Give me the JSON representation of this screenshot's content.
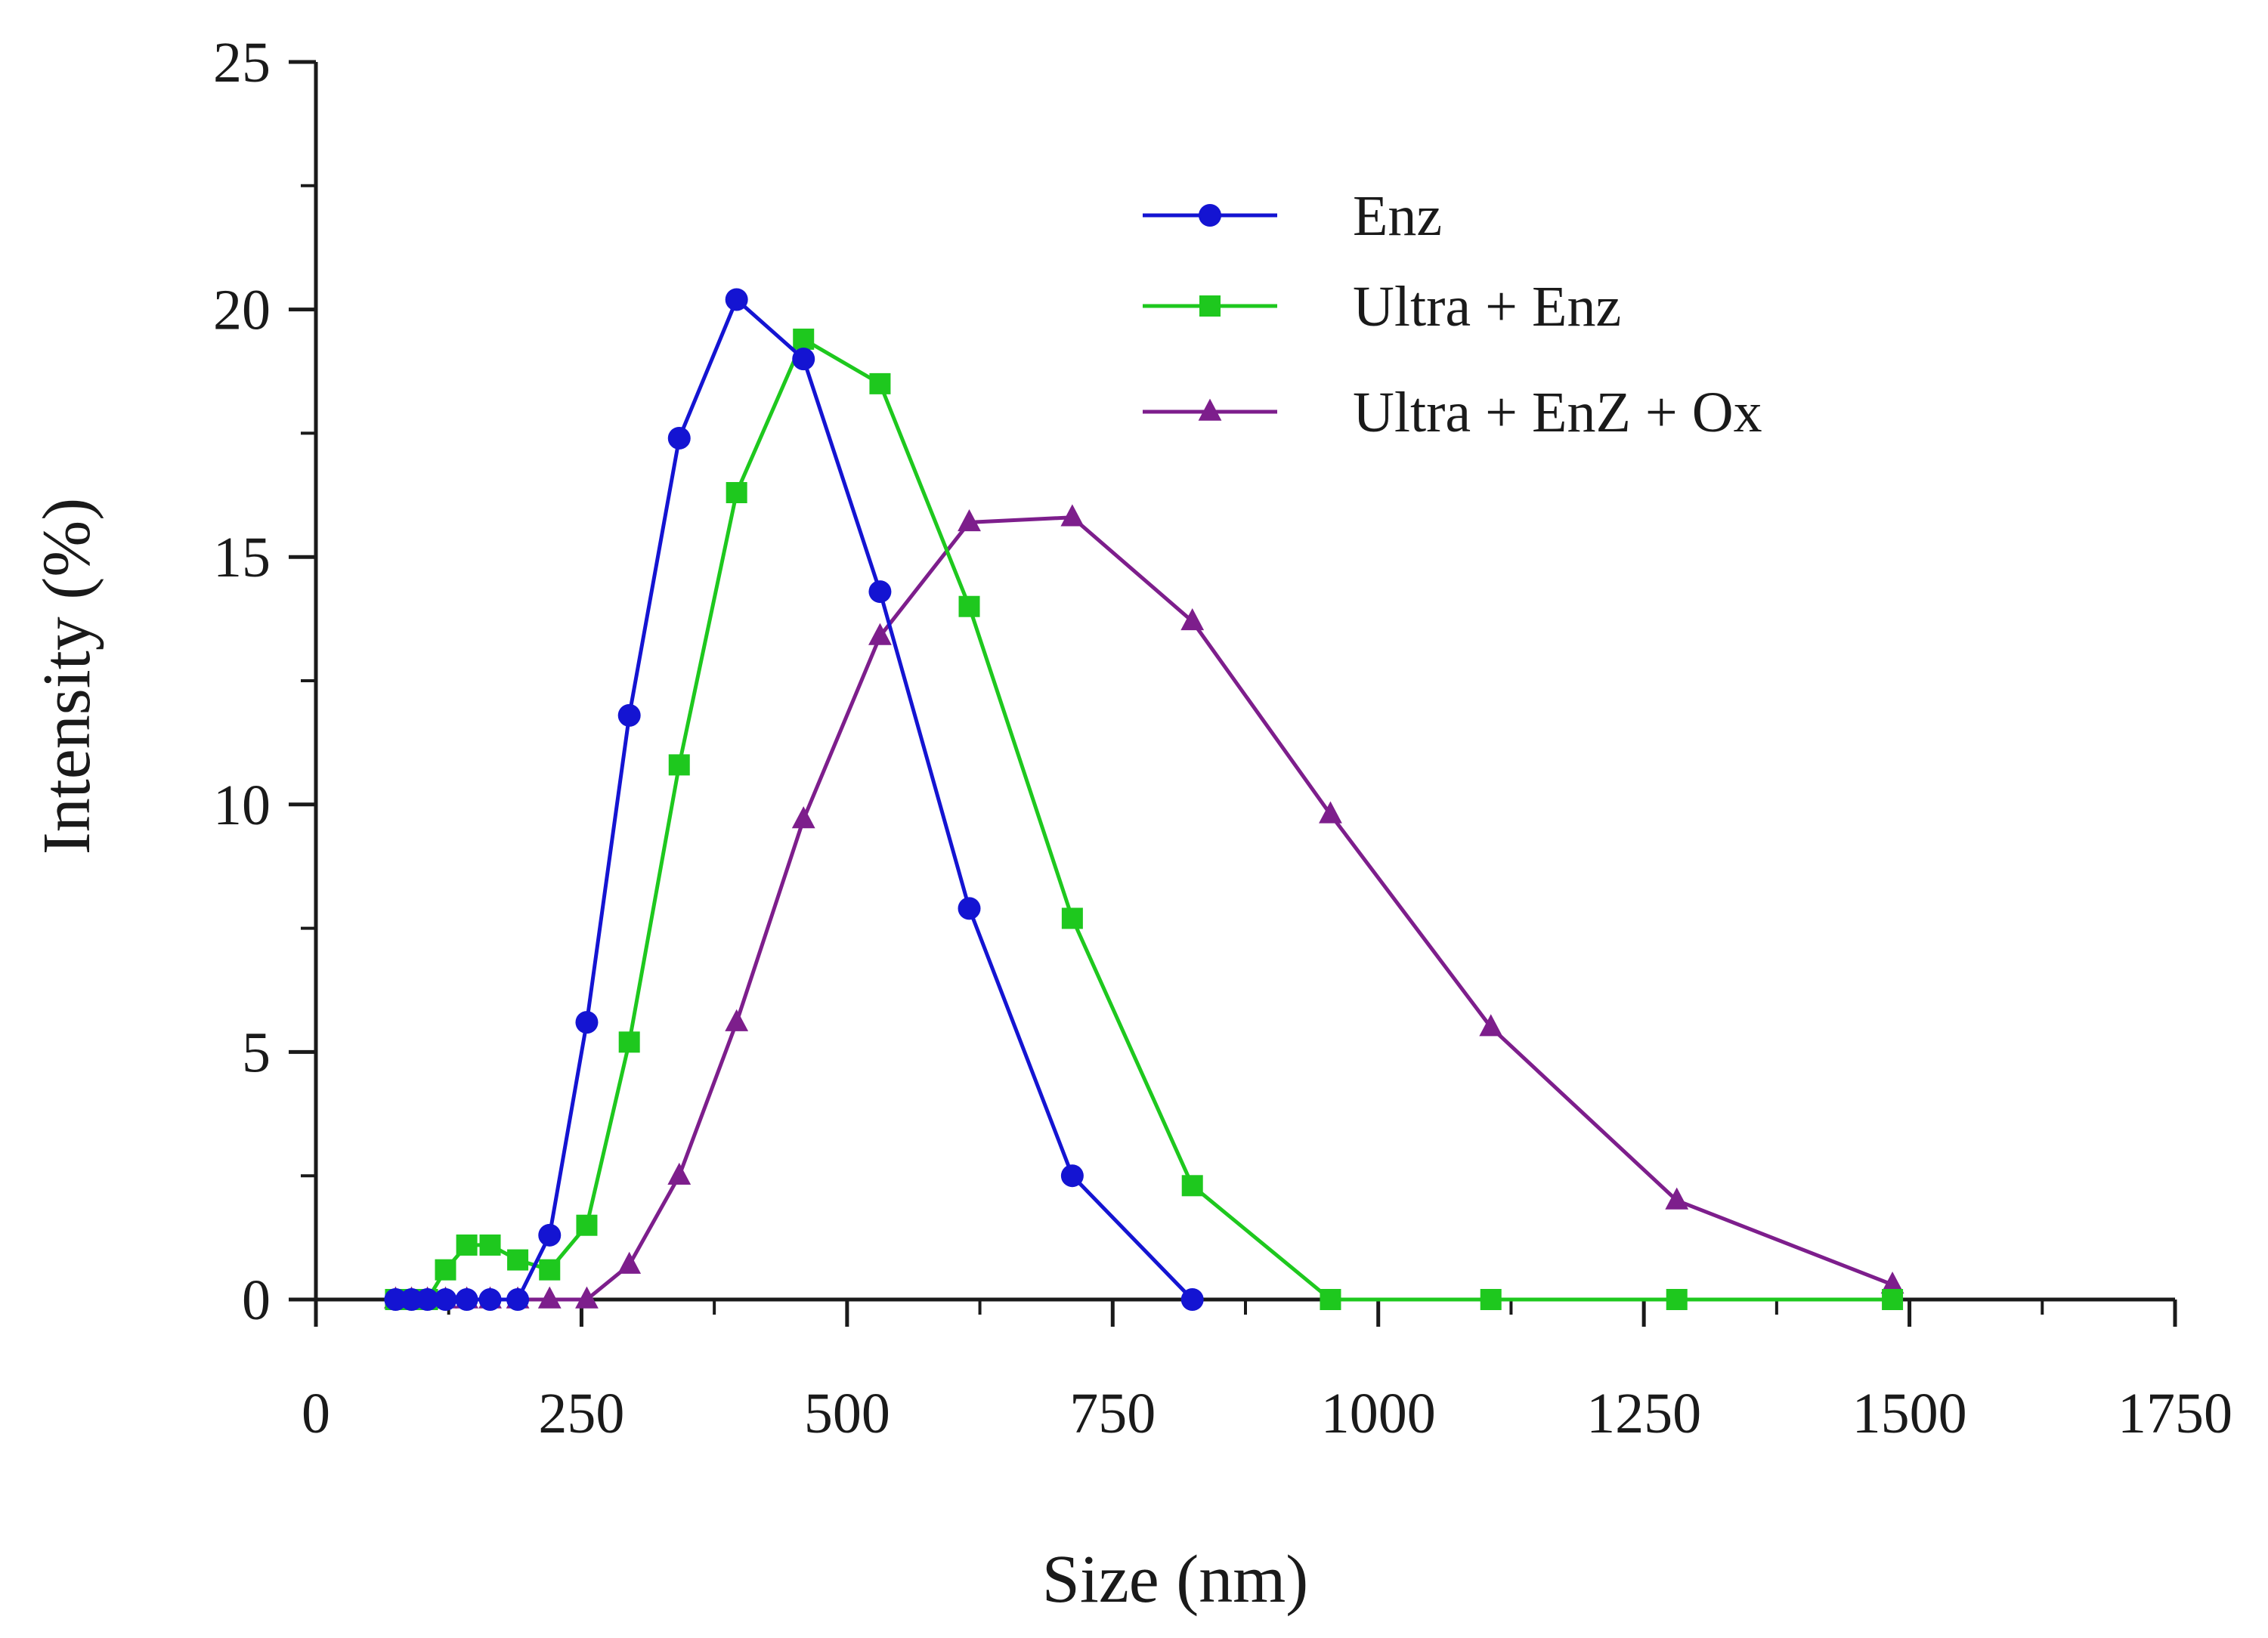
{
  "chart_data": {
    "type": "line",
    "title": "",
    "xlabel": "Size (nm)",
    "ylabel": "Intensity (%)",
    "xlim": [
      0,
      1750
    ],
    "ylim": [
      0,
      25
    ],
    "xticks": [
      0,
      250,
      500,
      750,
      1000,
      1250,
      1500,
      1750
    ],
    "yticks": [
      0,
      5,
      10,
      15,
      20,
      25
    ],
    "xtick_labels": [
      "0",
      "250",
      "500",
      "750",
      "1000",
      "1250",
      "1500",
      "1750"
    ],
    "ytick_labels": [
      "0",
      "5",
      "10",
      "15",
      "20",
      "25"
    ],
    "grid": false,
    "legend_position": "top-right",
    "series": [
      {
        "name": "Enz",
        "color": "#1414d2",
        "marker": "circle",
        "x": [
          75,
          90,
          105,
          122,
          142,
          164,
          190,
          220,
          255,
          295,
          342,
          396,
          459,
          531,
          615,
          712,
          825
        ],
        "y": [
          0,
          0,
          0,
          0,
          0,
          0,
          0,
          1.3,
          5.6,
          11.8,
          17.4,
          20.2,
          19.0,
          14.3,
          7.9,
          2.5,
          0
        ]
      },
      {
        "name": "Ultra + Enz",
        "color": "#1ec81e",
        "marker": "square",
        "x": [
          75,
          90,
          105,
          122,
          142,
          164,
          190,
          220,
          255,
          295,
          342,
          396,
          459,
          531,
          615,
          712,
          825,
          955,
          1106,
          1281,
          1484
        ],
        "y": [
          0,
          0,
          0,
          0.6,
          1.1,
          1.1,
          0.8,
          0.6,
          1.5,
          5.2,
          10.8,
          16.3,
          19.4,
          18.5,
          14.0,
          7.7,
          2.3,
          0,
          0,
          0,
          0
        ]
      },
      {
        "name": "Ultra + EnZ + Ox",
        "color": "#7d1e8c",
        "marker": "triangle",
        "x": [
          75,
          90,
          105,
          122,
          142,
          164,
          190,
          220,
          255,
          295,
          342,
          396,
          459,
          531,
          615,
          712,
          825,
          955,
          1106,
          1281,
          1484
        ],
        "y": [
          0,
          0,
          0,
          0,
          0,
          0,
          0,
          0,
          0,
          0.7,
          2.5,
          5.6,
          9.7,
          13.4,
          15.7,
          15.8,
          13.7,
          9.8,
          5.5,
          2.0,
          0.3
        ]
      }
    ]
  }
}
